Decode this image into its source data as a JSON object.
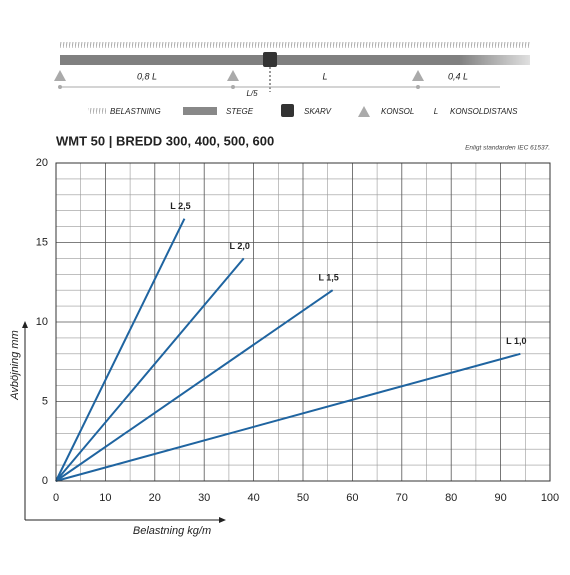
{
  "diagram": {
    "spans": [
      "0,8 L",
      "L",
      "0,4 L"
    ],
    "splice_label": "L/5",
    "legend": [
      "BELASTNING",
      "STEGE",
      "SKARV",
      "KONSOL",
      "L",
      "KONSOLDISTANS"
    ]
  },
  "chart_data": {
    "type": "line",
    "title": "WMT 50 | BREDD 300, 400, 500, 600",
    "subtitle": "Enligt standarden IEC 61537.",
    "x_label": "Belastning kg/m",
    "y_label": "Avböjning mm",
    "xlim": [
      0,
      100
    ],
    "ylim": [
      0,
      20
    ],
    "xticks": [
      0,
      10,
      20,
      30,
      40,
      50,
      60,
      70,
      80,
      90,
      100
    ],
    "yticks": [
      0,
      5,
      10,
      15,
      20
    ],
    "grid": true,
    "series": [
      {
        "name": "L 2,5",
        "color": "#1f64a0",
        "x": [
          0,
          26
        ],
        "values": [
          0,
          16.5
        ]
      },
      {
        "name": "L 2,0",
        "color": "#1f64a0",
        "x": [
          0,
          38
        ],
        "values": [
          0,
          14
        ]
      },
      {
        "name": "L 1,5",
        "color": "#1f64a0",
        "x": [
          0,
          56
        ],
        "values": [
          0,
          12
        ]
      },
      {
        "name": "L 1,0",
        "color": "#1f64a0",
        "x": [
          0,
          94
        ],
        "values": [
          0,
          8
        ]
      }
    ]
  }
}
